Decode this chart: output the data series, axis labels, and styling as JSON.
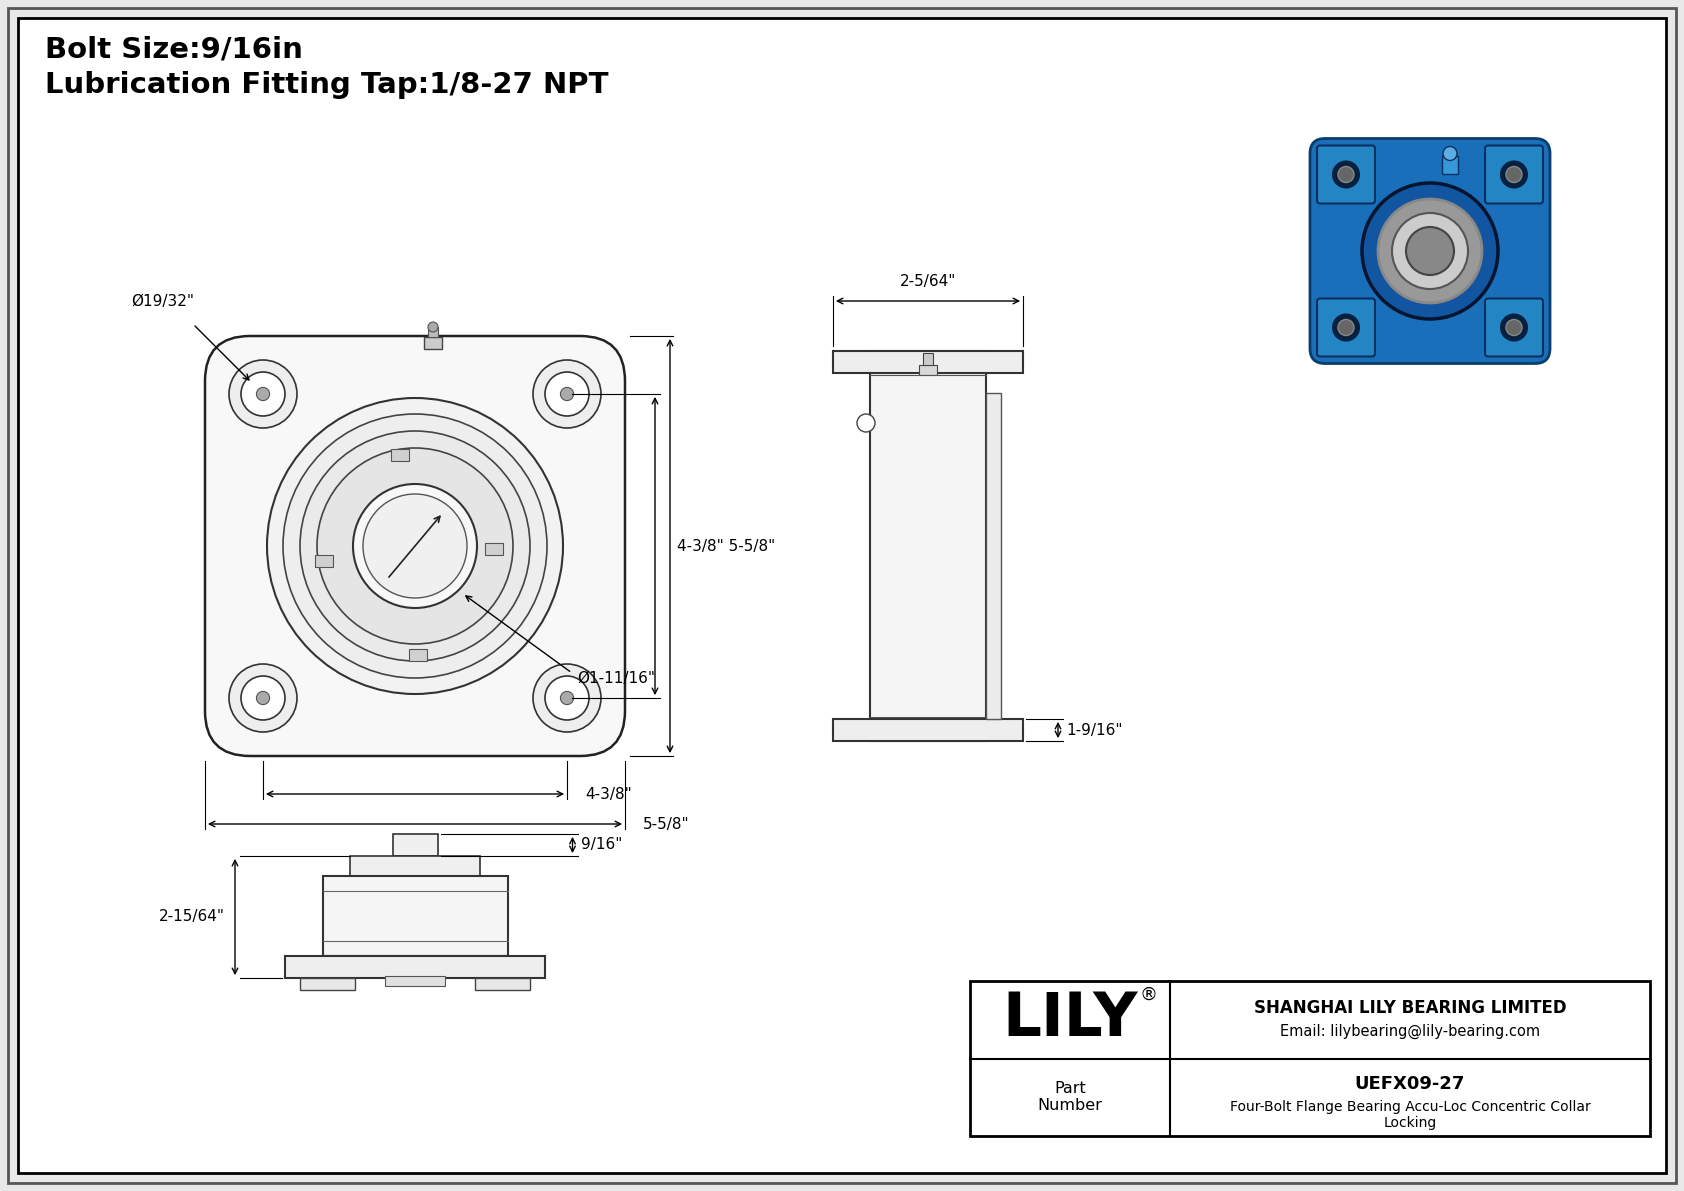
{
  "bg_color": "#e8e8e8",
  "inner_bg": "#ffffff",
  "title_line1": "Bolt Size:9/16in",
  "title_line2": "Lubrication Fitting Tap:1/8-27 NPT",
  "company_name": "SHANGHAI LILY BEARING LIMITED",
  "company_email": "Email: lilybearing@lily-bearing.com",
  "lily_text": "LILY",
  "lily_reg": "®",
  "part_label": "Part\nNumber",
  "part_number": "UEFX09-27",
  "part_desc": "Four-Bolt Flange Bearing Accu-Loc Concentric Collar\nLocking",
  "dim_d_bolt": "Ø19/32\"",
  "dim_4_38_5_58": "4-3/8\" 5-5/8\"",
  "dim_4_38": "4-3/8\"",
  "dim_5_58": "5-5/8\"",
  "dim_d_bore": "Ø1-11/16\"",
  "dim_2_564": "2-5/64\"",
  "dim_1_916": "1-9/16\"",
  "dim_2_1564": "2-15/64\"",
  "dim_916": "9/16\""
}
